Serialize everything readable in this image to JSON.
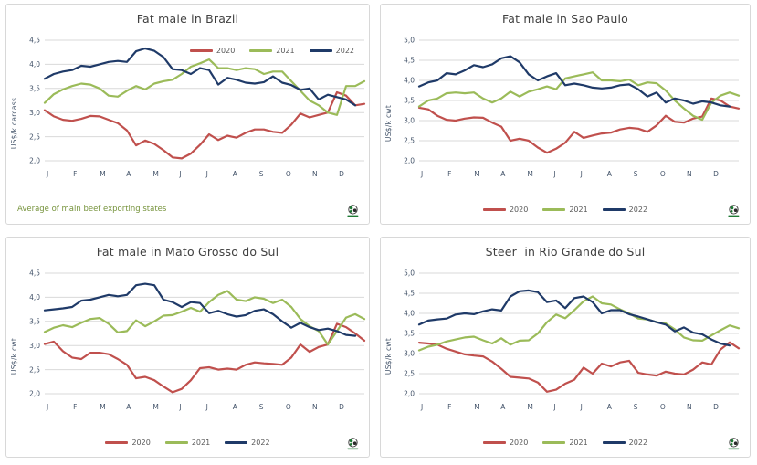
{
  "page": {
    "background": "#ffffff"
  },
  "months": [
    "J",
    "F",
    "M",
    "A",
    "M",
    "J",
    "J",
    "A",
    "S",
    "O",
    "N",
    "D"
  ],
  "colors": {
    "series_2020": "#C0504D",
    "series_2021": "#9BBB59",
    "series_2022": "#1F3A68",
    "gridline": "#D9D9D9",
    "title_text": "#404040",
    "axis_text": "#44546A",
    "footnote_text": "#76933C",
    "legend_text": "#595959"
  },
  "logo": {
    "icon": "globe-logo"
  },
  "chart_data": [
    {
      "type": "line",
      "title": "Fat male in Brazil",
      "ylabel": "US$/k carcass",
      "footnote": "Average of main beef exporting states",
      "legend_position": "top-right",
      "x_resolution": "weekly",
      "ylim": [
        2.0,
        4.5
      ],
      "ytick_values": [
        2.0,
        2.5,
        3.0,
        3.5,
        4.0,
        4.5
      ],
      "ytick_labels": [
        "2,0",
        "2,5",
        "3,0",
        "3,5",
        "4,0",
        "4,5"
      ],
      "grid": true,
      "series": [
        {
          "name": "2020",
          "color": "#C0504D",
          "values": [
            3.05,
            2.92,
            2.85,
            2.83,
            2.87,
            2.93,
            2.92,
            2.85,
            2.78,
            2.63,
            2.32,
            2.42,
            2.35,
            2.22,
            2.07,
            2.05,
            2.15,
            2.33,
            2.55,
            2.43,
            2.52,
            2.48,
            2.58,
            2.65,
            2.65,
            2.6,
            2.58,
            2.75,
            2.98,
            2.9,
            2.95,
            3.0,
            3.42,
            3.35,
            3.15,
            3.18
          ]
        },
        {
          "name": "2021",
          "color": "#9BBB59",
          "values": [
            3.2,
            3.38,
            3.48,
            3.55,
            3.6,
            3.58,
            3.5,
            3.35,
            3.33,
            3.45,
            3.55,
            3.48,
            3.6,
            3.65,
            3.68,
            3.8,
            3.95,
            4.02,
            4.1,
            3.92,
            3.92,
            3.88,
            3.92,
            3.9,
            3.8,
            3.85,
            3.85,
            3.65,
            3.45,
            3.25,
            3.15,
            3.0,
            2.95,
            3.55,
            3.55,
            3.65
          ]
        },
        {
          "name": "2022",
          "color": "#1F3A68",
          "values": [
            3.7,
            3.8,
            3.85,
            3.88,
            3.97,
            3.95,
            4.0,
            4.05,
            4.07,
            4.05,
            4.27,
            4.33,
            4.28,
            4.15,
            3.9,
            3.88,
            3.8,
            3.92,
            3.88,
            3.58,
            3.72,
            3.68,
            3.62,
            3.6,
            3.63,
            3.75,
            3.62,
            3.57,
            3.47,
            3.5,
            3.27,
            3.37,
            3.32,
            3.27,
            3.15
          ]
        }
      ]
    },
    {
      "type": "line",
      "title": "Fat male in Sao Paulo",
      "ylabel": "US$/k cwt",
      "legend_position": "bottom",
      "x_resolution": "weekly",
      "ylim": [
        2.0,
        5.0
      ],
      "ytick_values": [
        2.0,
        2.5,
        3.0,
        3.5,
        4.0,
        4.5,
        5.0
      ],
      "ytick_labels": [
        "2,0",
        "2,5",
        "3,0",
        "3,5",
        "4,0",
        "4,5",
        "5,0"
      ],
      "grid": true,
      "series": [
        {
          "name": "2020",
          "color": "#C0504D",
          "values": [
            3.32,
            3.28,
            3.12,
            3.02,
            3.0,
            3.05,
            3.08,
            3.07,
            2.95,
            2.85,
            2.5,
            2.55,
            2.5,
            2.33,
            2.2,
            2.3,
            2.45,
            2.72,
            2.57,
            2.63,
            2.68,
            2.7,
            2.78,
            2.82,
            2.8,
            2.72,
            2.88,
            3.12,
            2.97,
            2.95,
            3.05,
            3.1,
            3.55,
            3.5,
            3.35,
            3.3
          ]
        },
        {
          "name": "2021",
          "color": "#9BBB59",
          "values": [
            3.35,
            3.5,
            3.55,
            3.68,
            3.7,
            3.68,
            3.7,
            3.55,
            3.45,
            3.55,
            3.72,
            3.6,
            3.72,
            3.78,
            3.85,
            3.78,
            4.05,
            4.1,
            4.15,
            4.2,
            4.0,
            4.0,
            3.98,
            4.02,
            3.88,
            3.95,
            3.93,
            3.75,
            3.5,
            3.3,
            3.12,
            3.02,
            3.45,
            3.62,
            3.7,
            3.62
          ]
        },
        {
          "name": "2022",
          "color": "#1F3A68",
          "values": [
            3.85,
            3.95,
            4.0,
            4.18,
            4.15,
            4.25,
            4.38,
            4.33,
            4.4,
            4.55,
            4.6,
            4.45,
            4.15,
            4.0,
            4.1,
            4.18,
            3.88,
            3.92,
            3.88,
            3.82,
            3.8,
            3.82,
            3.88,
            3.9,
            3.78,
            3.6,
            3.7,
            3.45,
            3.55,
            3.5,
            3.42,
            3.48,
            3.45,
            3.38,
            3.35
          ]
        }
      ]
    },
    {
      "type": "line",
      "title": "Fat male in Mato Grosso do Sul",
      "ylabel": "US$/k cwt",
      "legend_position": "bottom",
      "x_resolution": "weekly",
      "ylim": [
        2.0,
        4.5
      ],
      "ytick_values": [
        2.0,
        2.5,
        3.0,
        3.5,
        4.0,
        4.5
      ],
      "ytick_labels": [
        "2,0",
        "2,5",
        "3,0",
        "3,5",
        "4,0",
        "4,5"
      ],
      "grid": true,
      "series": [
        {
          "name": "2020",
          "color": "#C0504D",
          "values": [
            3.03,
            3.08,
            2.88,
            2.75,
            2.72,
            2.85,
            2.85,
            2.82,
            2.72,
            2.6,
            2.32,
            2.35,
            2.28,
            2.15,
            2.03,
            2.1,
            2.28,
            2.53,
            2.55,
            2.5,
            2.52,
            2.5,
            2.6,
            2.65,
            2.63,
            2.62,
            2.6,
            2.75,
            3.02,
            2.87,
            2.97,
            3.02,
            3.45,
            3.38,
            3.25,
            3.1
          ]
        },
        {
          "name": "2021",
          "color": "#9BBB59",
          "values": [
            3.28,
            3.37,
            3.42,
            3.38,
            3.47,
            3.55,
            3.57,
            3.45,
            3.27,
            3.3,
            3.52,
            3.4,
            3.5,
            3.62,
            3.63,
            3.7,
            3.78,
            3.7,
            3.9,
            4.05,
            4.13,
            3.95,
            3.92,
            4.0,
            3.97,
            3.88,
            3.95,
            3.8,
            3.55,
            3.4,
            3.3,
            3.02,
            3.3,
            3.58,
            3.65,
            3.55
          ]
        },
        {
          "name": "2022",
          "color": "#1F3A68",
          "values": [
            3.73,
            3.75,
            3.77,
            3.8,
            3.93,
            3.95,
            4.0,
            4.05,
            4.02,
            4.05,
            4.25,
            4.28,
            4.25,
            3.95,
            3.9,
            3.8,
            3.9,
            3.88,
            3.67,
            3.72,
            3.65,
            3.6,
            3.63,
            3.72,
            3.75,
            3.65,
            3.5,
            3.37,
            3.47,
            3.38,
            3.32,
            3.35,
            3.3,
            3.22,
            3.2
          ]
        }
      ]
    },
    {
      "type": "line",
      "title": "Steer  in Rio Grande do Sul",
      "ylabel": "US$/k cwt",
      "legend_position": "bottom",
      "x_resolution": "weekly",
      "ylim": [
        2.0,
        5.0
      ],
      "ytick_values": [
        2.0,
        2.5,
        3.0,
        3.5,
        4.0,
        4.5,
        5.0
      ],
      "ytick_labels": [
        "2,0",
        "2,5",
        "3,0",
        "3,5",
        "4,0",
        "4,5",
        "5,0"
      ],
      "grid": true,
      "series": [
        {
          "name": "2020",
          "color": "#C0504D",
          "values": [
            3.27,
            3.25,
            3.22,
            3.12,
            3.05,
            2.98,
            2.95,
            2.93,
            2.8,
            2.62,
            2.42,
            2.4,
            2.38,
            2.28,
            2.05,
            2.1,
            2.25,
            2.35,
            2.65,
            2.5,
            2.75,
            2.68,
            2.78,
            2.82,
            2.52,
            2.48,
            2.45,
            2.55,
            2.5,
            2.48,
            2.6,
            2.78,
            2.73,
            3.1,
            3.28,
            3.13
          ]
        },
        {
          "name": "2021",
          "color": "#9BBB59",
          "values": [
            3.08,
            3.17,
            3.22,
            3.3,
            3.35,
            3.4,
            3.42,
            3.33,
            3.25,
            3.38,
            3.22,
            3.32,
            3.33,
            3.5,
            3.78,
            3.97,
            3.88,
            4.08,
            4.3,
            4.42,
            4.25,
            4.22,
            4.1,
            4.0,
            3.87,
            3.85,
            3.78,
            3.75,
            3.6,
            3.4,
            3.33,
            3.32,
            3.45,
            3.58,
            3.7,
            3.63
          ]
        },
        {
          "name": "2022",
          "color": "#1F3A68",
          "values": [
            3.72,
            3.82,
            3.85,
            3.87,
            3.97,
            4.0,
            3.98,
            4.05,
            4.1,
            4.07,
            4.42,
            4.55,
            4.57,
            4.53,
            4.28,
            4.32,
            4.13,
            4.38,
            4.42,
            4.28,
            4.0,
            4.08,
            4.08,
            3.98,
            3.92,
            3.85,
            3.78,
            3.72,
            3.55,
            3.65,
            3.52,
            3.48,
            3.35,
            3.25,
            3.2
          ]
        }
      ]
    }
  ]
}
